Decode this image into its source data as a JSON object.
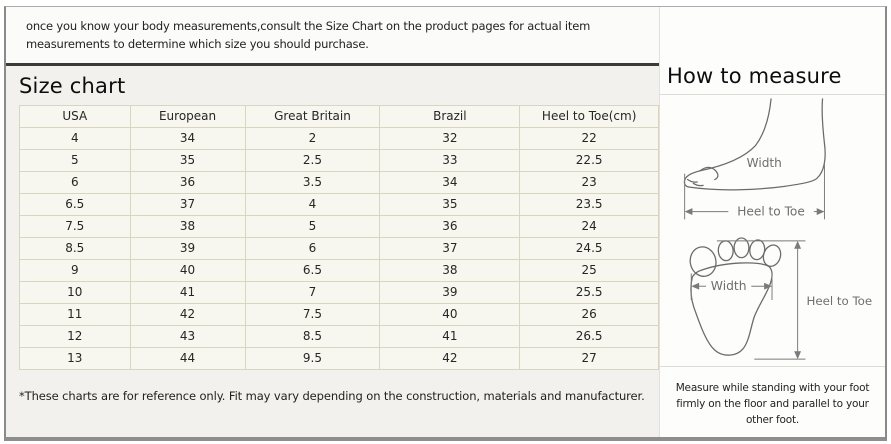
{
  "intro": {
    "text": "once you know your body measurements,consult the Size Chart on the product pages for actual item measurements to determine which size you should purchase."
  },
  "size_chart": {
    "title": "Size chart",
    "table": {
      "headers": [
        "USA",
        "European",
        "Great Britain",
        "Brazil",
        "Heel to Toe(cm)"
      ],
      "rows": [
        [
          "4",
          "34",
          "2",
          "32",
          "22"
        ],
        [
          "5",
          "35",
          "2.5",
          "33",
          "22.5"
        ],
        [
          "6",
          "36",
          "3.5",
          "34",
          "23"
        ],
        [
          "6.5",
          "37",
          "4",
          "35",
          "23.5"
        ],
        [
          "7.5",
          "38",
          "5",
          "36",
          "24"
        ],
        [
          "8.5",
          "39",
          "6",
          "37",
          "24.5"
        ],
        [
          "9",
          "40",
          "6.5",
          "38",
          "25"
        ],
        [
          "10",
          "41",
          "7",
          "39",
          "25.5"
        ],
        [
          "11",
          "42",
          "7.5",
          "40",
          "26"
        ],
        [
          "12",
          "43",
          "8.5",
          "41",
          "26.5"
        ],
        [
          "13",
          "44",
          "9.5",
          "42",
          "27"
        ]
      ]
    },
    "footnote": "*These charts are for reference only. Fit may vary depending on the construction, materials and manufacturer."
  },
  "how_to_measure": {
    "title": "How to measure",
    "side_diagram": {
      "width_label": "Width",
      "heel_to_toe_label": "Heel to Toe"
    },
    "sole_diagram": {
      "width_label": "Width",
      "heel_to_toe_label": "Heel to Toe"
    },
    "instructions": "Measure while standing with your foot firmly on the floor and parallel to your other foot."
  },
  "colors": {
    "frame_border": "#8a8a8a",
    "left_panel_bg": "#f2f1ed",
    "table_bg": "#f8f7ef",
    "table_border": "#d9d5c0",
    "intro_divider": "#3b3b3b",
    "diagram_stroke": "#6b6b6b"
  }
}
